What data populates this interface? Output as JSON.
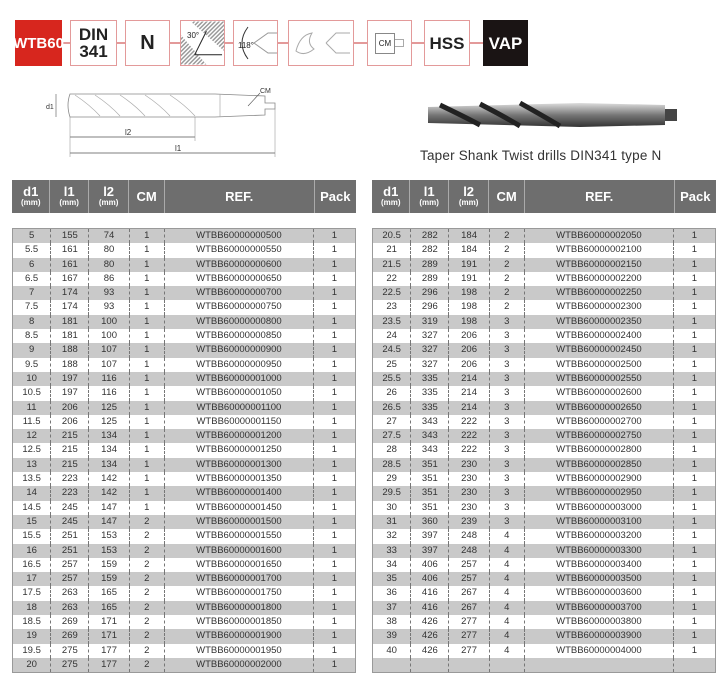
{
  "badges": [
    {
      "label": "WTB60",
      "style": "red"
    },
    {
      "label": "DIN 341",
      "style": "plain"
    },
    {
      "label": "N",
      "style": "plain"
    },
    {
      "label": "30°",
      "style": "icon",
      "icon": "point-angle-30-icon"
    },
    {
      "label": "118°",
      "style": "icon",
      "icon": "tip-angle-118-icon"
    },
    {
      "label": "",
      "style": "icon",
      "icon": "drill-tip-profile-icon"
    },
    {
      "label": "CM",
      "style": "icon",
      "icon": "morse-taper-shank-icon"
    },
    {
      "label": "HSS",
      "style": "plain"
    },
    {
      "label": "VAP",
      "style": "black"
    }
  ],
  "diagram": {
    "labels": {
      "d1": "d1",
      "l1": "l1",
      "l2": "l2",
      "cm": "CM"
    }
  },
  "caption": "Taper Shank Twist drills DIN341 type N",
  "columns": [
    {
      "main": "d1",
      "unit": "(mm)"
    },
    {
      "main": "l1",
      "unit": "(mm)"
    },
    {
      "main": "l2",
      "unit": "(mm)"
    },
    {
      "main": "CM",
      "unit": ""
    },
    {
      "main": "REF.",
      "unit": ""
    },
    {
      "main": "Pack",
      "unit": ""
    }
  ],
  "left_rows": [
    [
      "5",
      "155",
      "74",
      "1",
      "WTBB60000000500",
      "1"
    ],
    [
      "5.5",
      "161",
      "80",
      "1",
      "WTBB60000000550",
      "1"
    ],
    [
      "6",
      "161",
      "80",
      "1",
      "WTBB60000000600",
      "1"
    ],
    [
      "6.5",
      "167",
      "86",
      "1",
      "WTBB60000000650",
      "1"
    ],
    [
      "7",
      "174",
      "93",
      "1",
      "WTBB60000000700",
      "1"
    ],
    [
      "7.5",
      "174",
      "93",
      "1",
      "WTBB60000000750",
      "1"
    ],
    [
      "8",
      "181",
      "100",
      "1",
      "WTBB60000000800",
      "1"
    ],
    [
      "8.5",
      "181",
      "100",
      "1",
      "WTBB60000000850",
      "1"
    ],
    [
      "9",
      "188",
      "107",
      "1",
      "WTBB60000000900",
      "1"
    ],
    [
      "9.5",
      "188",
      "107",
      "1",
      "WTBB60000000950",
      "1"
    ],
    [
      "10",
      "197",
      "116",
      "1",
      "WTBB60000001000",
      "1"
    ],
    [
      "10.5",
      "197",
      "116",
      "1",
      "WTBB60000001050",
      "1"
    ],
    [
      "11",
      "206",
      "125",
      "1",
      "WTBB60000001100",
      "1"
    ],
    [
      "11.5",
      "206",
      "125",
      "1",
      "WTBB60000001150",
      "1"
    ],
    [
      "12",
      "215",
      "134",
      "1",
      "WTBB60000001200",
      "1"
    ],
    [
      "12.5",
      "215",
      "134",
      "1",
      "WTBB60000001250",
      "1"
    ],
    [
      "13",
      "215",
      "134",
      "1",
      "WTBB60000001300",
      "1"
    ],
    [
      "13.5",
      "223",
      "142",
      "1",
      "WTBB60000001350",
      "1"
    ],
    [
      "14",
      "223",
      "142",
      "1",
      "WTBB60000001400",
      "1"
    ],
    [
      "14.5",
      "245",
      "147",
      "1",
      "WTBB60000001450",
      "1"
    ],
    [
      "15",
      "245",
      "147",
      "2",
      "WTBB60000001500",
      "1"
    ],
    [
      "15.5",
      "251",
      "153",
      "2",
      "WTBB60000001550",
      "1"
    ],
    [
      "16",
      "251",
      "153",
      "2",
      "WTBB60000001600",
      "1"
    ],
    [
      "16.5",
      "257",
      "159",
      "2",
      "WTBB60000001650",
      "1"
    ],
    [
      "17",
      "257",
      "159",
      "2",
      "WTBB60000001700",
      "1"
    ],
    [
      "17.5",
      "263",
      "165",
      "2",
      "WTBB60000001750",
      "1"
    ],
    [
      "18",
      "263",
      "165",
      "2",
      "WTBB60000001800",
      "1"
    ],
    [
      "18.5",
      "269",
      "171",
      "2",
      "WTBB60000001850",
      "1"
    ],
    [
      "19",
      "269",
      "171",
      "2",
      "WTBB60000001900",
      "1"
    ],
    [
      "19.5",
      "275",
      "177",
      "2",
      "WTBB60000001950",
      "1"
    ],
    [
      "20",
      "275",
      "177",
      "2",
      "WTBB60000002000",
      "1"
    ]
  ],
  "right_rows": [
    [
      "20.5",
      "282",
      "184",
      "2",
      "WTBB60000002050",
      "1"
    ],
    [
      "21",
      "282",
      "184",
      "2",
      "WTBB60000002100",
      "1"
    ],
    [
      "21.5",
      "289",
      "191",
      "2",
      "WTBB60000002150",
      "1"
    ],
    [
      "22",
      "289",
      "191",
      "2",
      "WTBB60000002200",
      "1"
    ],
    [
      "22.5",
      "296",
      "198",
      "2",
      "WTBB60000002250",
      "1"
    ],
    [
      "23",
      "296",
      "198",
      "2",
      "WTBB60000002300",
      "1"
    ],
    [
      "23.5",
      "319",
      "198",
      "3",
      "WTBB60000002350",
      "1"
    ],
    [
      "24",
      "327",
      "206",
      "3",
      "WTBB60000002400",
      "1"
    ],
    [
      "24.5",
      "327",
      "206",
      "3",
      "WTBB60000002450",
      "1"
    ],
    [
      "25",
      "327",
      "206",
      "3",
      "WTBB60000002500",
      "1"
    ],
    [
      "25.5",
      "335",
      "214",
      "3",
      "WTBB60000002550",
      "1"
    ],
    [
      "26",
      "335",
      "214",
      "3",
      "WTBB60000002600",
      "1"
    ],
    [
      "26.5",
      "335",
      "214",
      "3",
      "WTBB60000002650",
      "1"
    ],
    [
      "27",
      "343",
      "222",
      "3",
      "WTBB60000002700",
      "1"
    ],
    [
      "27.5",
      "343",
      "222",
      "3",
      "WTBB60000002750",
      "1"
    ],
    [
      "28",
      "343",
      "222",
      "3",
      "WTBB60000002800",
      "1"
    ],
    [
      "28.5",
      "351",
      "230",
      "3",
      "WTBB60000002850",
      "1"
    ],
    [
      "29",
      "351",
      "230",
      "3",
      "WTBB60000002900",
      "1"
    ],
    [
      "29.5",
      "351",
      "230",
      "3",
      "WTBB60000002950",
      "1"
    ],
    [
      "30",
      "351",
      "230",
      "3",
      "WTBB60000003000",
      "1"
    ],
    [
      "31",
      "360",
      "239",
      "3",
      "WTBB60000003100",
      "1"
    ],
    [
      "32",
      "397",
      "248",
      "4",
      "WTBB60000003200",
      "1"
    ],
    [
      "33",
      "397",
      "248",
      "4",
      "WTBB60000003300",
      "1"
    ],
    [
      "34",
      "406",
      "257",
      "4",
      "WTBB60000003400",
      "1"
    ],
    [
      "35",
      "406",
      "257",
      "4",
      "WTBB60000003500",
      "1"
    ],
    [
      "36",
      "416",
      "267",
      "4",
      "WTBB60000003600",
      "1"
    ],
    [
      "37",
      "416",
      "267",
      "4",
      "WTBB60000003700",
      "1"
    ],
    [
      "38",
      "426",
      "277",
      "4",
      "WTBB60000003800",
      "1"
    ],
    [
      "39",
      "426",
      "277",
      "4",
      "WTBB60000003900",
      "1"
    ],
    [
      "40",
      "426",
      "277",
      "4",
      "WTBB60000004000",
      "1"
    ],
    [
      "",
      "",
      "",
      "",
      "",
      ""
    ]
  ],
  "colors": {
    "brand_red": "#d7261e",
    "header_gray": "#6e6e6e",
    "row_gray": "#c9c9c9",
    "connector": "#e39a9a"
  }
}
